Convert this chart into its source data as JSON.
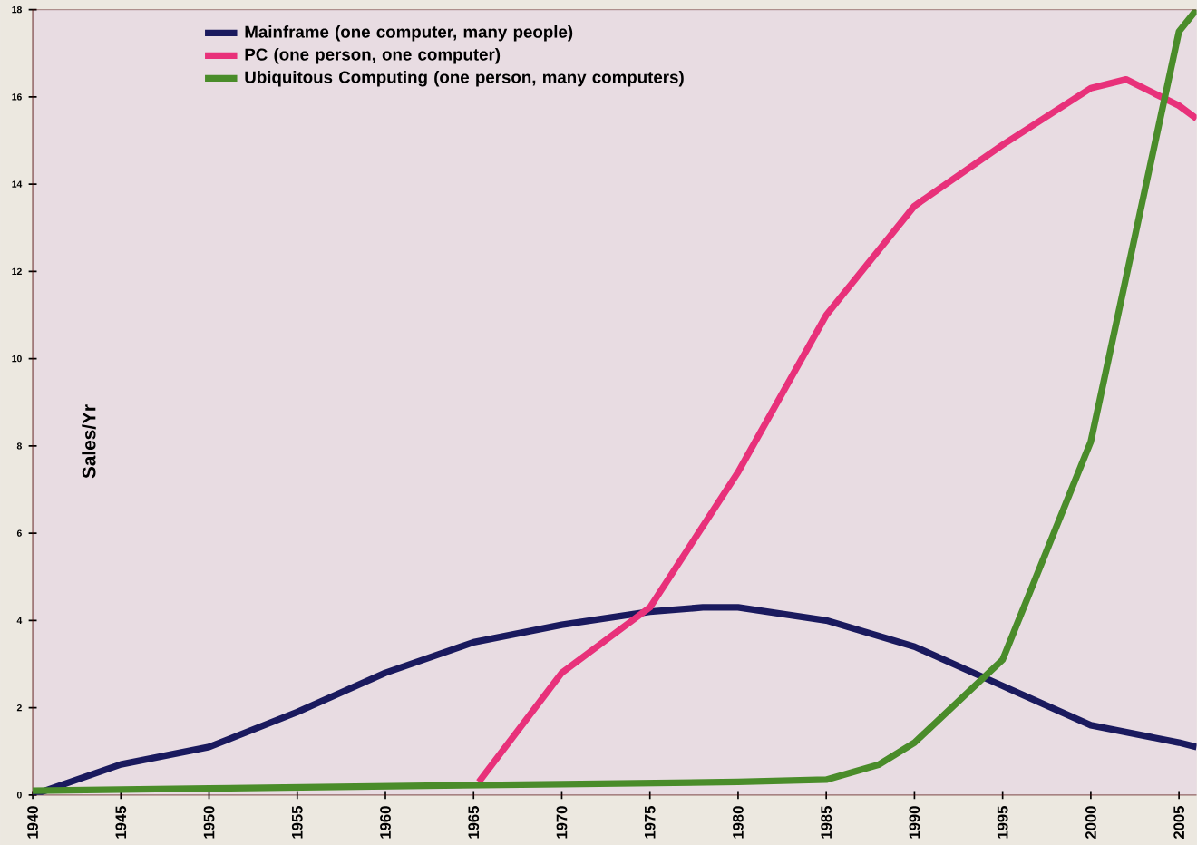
{
  "chart_data": {
    "type": "line",
    "ylabel": "Sales/Yr",
    "xlim": [
      1940,
      2006
    ],
    "ylim": [
      0,
      18
    ],
    "xticks": [
      1940,
      1945,
      1950,
      1955,
      1960,
      1965,
      1970,
      1975,
      1980,
      1985,
      1990,
      1995,
      2000,
      2005
    ],
    "yticks": [
      0,
      2,
      4,
      6,
      8,
      10,
      12,
      14,
      16,
      18
    ],
    "legend": "top left",
    "grid": false,
    "marker": "none",
    "line_style": "solid",
    "series": [
      {
        "name": "Mainframe (one computer, many people)",
        "color": "#1a1a5e",
        "x": [
          1940,
          1945,
          1950,
          1955,
          1960,
          1965,
          1970,
          1975,
          1978,
          1980,
          1985,
          1990,
          1995,
          2000,
          2005,
          2006
        ],
        "values": [
          0,
          0.7,
          1.1,
          1.9,
          2.8,
          3.5,
          3.9,
          4.2,
          4.3,
          4.3,
          4.0,
          3.4,
          2.5,
          1.6,
          1.2,
          1.1
        ]
      },
      {
        "name": "PC (one person, one computer)",
        "color": "#e8317a",
        "x": [
          1965.3,
          1970,
          1975,
          1980,
          1985,
          1990,
          1995,
          2000,
          2002,
          2005,
          2006
        ],
        "values": [
          0.3,
          2.8,
          4.3,
          7.4,
          11,
          13.5,
          14.9,
          16.2,
          16.4,
          15.8,
          15.5
        ]
      },
      {
        "name": "Ubiquitous Computing (one person, many computers)",
        "color": "#4a8c2a",
        "x": [
          1940,
          1950,
          1960,
          1970,
          1980,
          1985,
          1988,
          1990,
          1995,
          2000,
          2005,
          2006
        ],
        "values": [
          0.1,
          0.15,
          0.2,
          0.25,
          0.3,
          0.35,
          0.7,
          1.2,
          3.1,
          8.1,
          17.5,
          18
        ]
      }
    ]
  }
}
